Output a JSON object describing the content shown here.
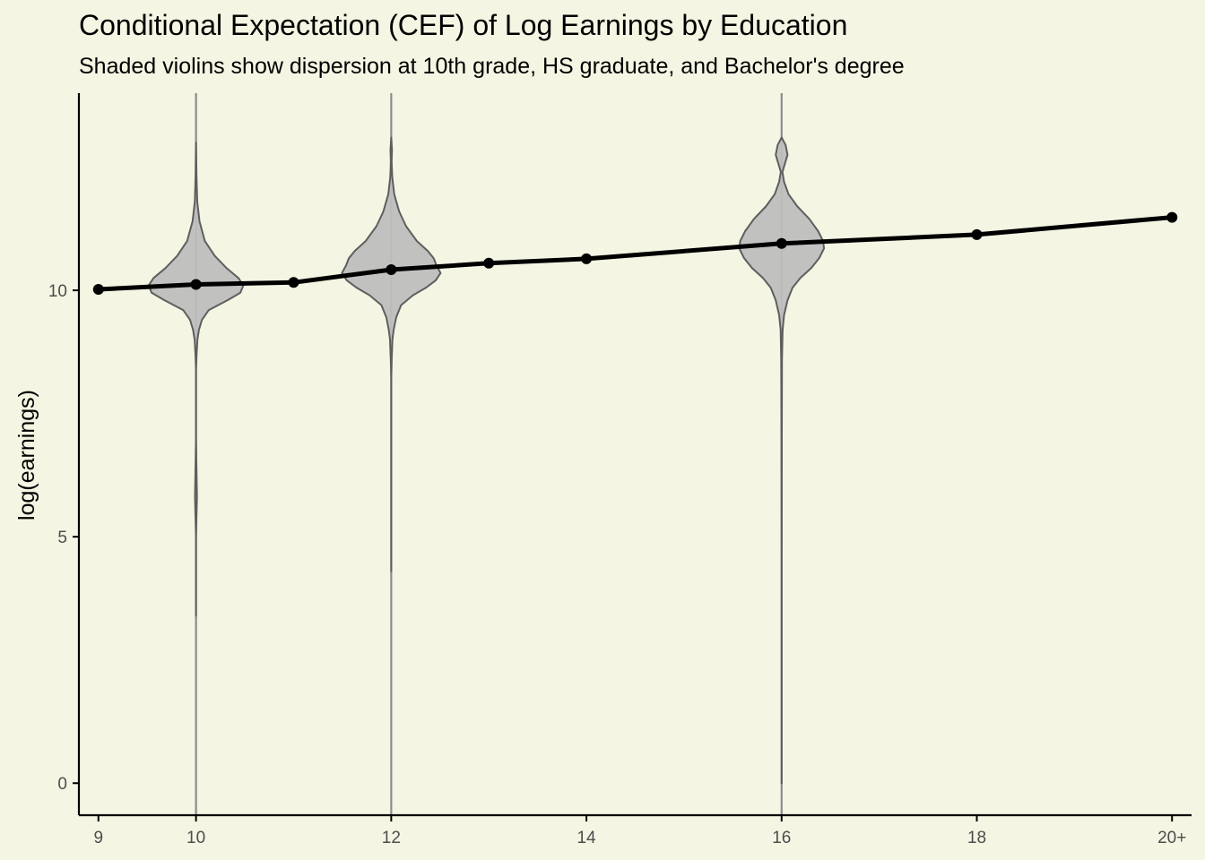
{
  "chart_data": {
    "type": "line",
    "title": "Conditional Expectation (CEF) of Log Earnings by Education",
    "subtitle": "Shaded violins show dispersion at 10th grade, HS graduate, and Bachelor's degree",
    "xlabel": "",
    "ylabel": "log(earnings)",
    "x_ticks": [
      {
        "value": 9,
        "label": "9"
      },
      {
        "value": 10,
        "label": "10"
      },
      {
        "value": 12,
        "label": "12"
      },
      {
        "value": 14,
        "label": "14"
      },
      {
        "value": 16,
        "label": "16"
      },
      {
        "value": 18,
        "label": "18"
      },
      {
        "value": 20,
        "label": "20+"
      }
    ],
    "y_ticks": [
      {
        "value": 0,
        "label": "0"
      },
      {
        "value": 5,
        "label": "5"
      },
      {
        "value": 10,
        "label": "10"
      }
    ],
    "xlim": [
      8.8,
      20.2
    ],
    "ylim": [
      -0.65,
      14.0
    ],
    "grid": false,
    "series": [
      {
        "x": [
          9,
          10,
          11,
          12,
          13,
          14,
          16,
          18,
          20
        ],
        "values": [
          10.02,
          10.12,
          10.16,
          10.42,
          10.55,
          10.64,
          10.95,
          11.13,
          11.48
        ]
      }
    ],
    "violins": [
      {
        "x": 10,
        "ymin": 3.4,
        "ymax": 13.0,
        "profile": [
          [
            3.4,
            0.0
          ],
          [
            5.0,
            0.0
          ],
          [
            5.8,
            0.01
          ],
          [
            7.0,
            0.0
          ],
          [
            8.4,
            0.0
          ],
          [
            8.7,
            0.006
          ],
          [
            9.0,
            0.014
          ],
          [
            9.2,
            0.03
          ],
          [
            9.4,
            0.06
          ],
          [
            9.6,
            0.13
          ],
          [
            9.8,
            0.32
          ],
          [
            9.95,
            0.45
          ],
          [
            10.1,
            0.48
          ],
          [
            10.25,
            0.43
          ],
          [
            10.45,
            0.31
          ],
          [
            10.7,
            0.19
          ],
          [
            11.0,
            0.09
          ],
          [
            11.4,
            0.035
          ],
          [
            11.8,
            0.012
          ],
          [
            12.3,
            0.005
          ],
          [
            13.0,
            0.0
          ]
        ],
        "fill": "#BEBEBE",
        "stroke": "#5E5E5E"
      },
      {
        "x": 12,
        "ymin": 4.3,
        "ymax": 13.1,
        "profile": [
          [
            4.3,
            0.0
          ],
          [
            6.5,
            0.0
          ],
          [
            8.2,
            0.0
          ],
          [
            8.6,
            0.005
          ],
          [
            9.0,
            0.012
          ],
          [
            9.2,
            0.025
          ],
          [
            9.45,
            0.05
          ],
          [
            9.7,
            0.1
          ],
          [
            9.9,
            0.22
          ],
          [
            10.05,
            0.35
          ],
          [
            10.2,
            0.45
          ],
          [
            10.35,
            0.5
          ],
          [
            10.5,
            0.46
          ],
          [
            10.65,
            0.43
          ],
          [
            10.8,
            0.37
          ],
          [
            11.0,
            0.26
          ],
          [
            11.3,
            0.15
          ],
          [
            11.6,
            0.08
          ],
          [
            11.95,
            0.03
          ],
          [
            12.3,
            0.01
          ],
          [
            12.6,
            0.004
          ],
          [
            12.85,
            0.008
          ],
          [
            13.1,
            0.0
          ]
        ],
        "fill": "#BEBEBE",
        "stroke": "#5E5E5E"
      },
      {
        "x": 16,
        "ymin": 0.0,
        "ymax": 13.1,
        "profile": [
          [
            0.0,
            0.0
          ],
          [
            4.5,
            0.0
          ],
          [
            7.0,
            0.002
          ],
          [
            8.6,
            0.004
          ],
          [
            9.2,
            0.01
          ],
          [
            9.5,
            0.025
          ],
          [
            9.8,
            0.06
          ],
          [
            10.05,
            0.11
          ],
          [
            10.25,
            0.19
          ],
          [
            10.45,
            0.3
          ],
          [
            10.65,
            0.38
          ],
          [
            10.85,
            0.43
          ],
          [
            11.0,
            0.42
          ],
          [
            11.2,
            0.37
          ],
          [
            11.45,
            0.28
          ],
          [
            11.7,
            0.16
          ],
          [
            11.95,
            0.07
          ],
          [
            12.2,
            0.025
          ],
          [
            12.4,
            0.008
          ],
          [
            12.55,
            0.03
          ],
          [
            12.75,
            0.06
          ],
          [
            12.95,
            0.04
          ],
          [
            13.1,
            0.0
          ]
        ],
        "fill": "#BEBEBE",
        "stroke": "#5E5E5E"
      }
    ],
    "colors": {
      "background": "#F5F5E3",
      "line": "#000000",
      "violin_fill": "#BEBEBE",
      "violin_stroke": "#5E5E5E",
      "vline": "#8C8C8C",
      "axis": "#000000",
      "tick_label": "#4D4D4D"
    }
  }
}
